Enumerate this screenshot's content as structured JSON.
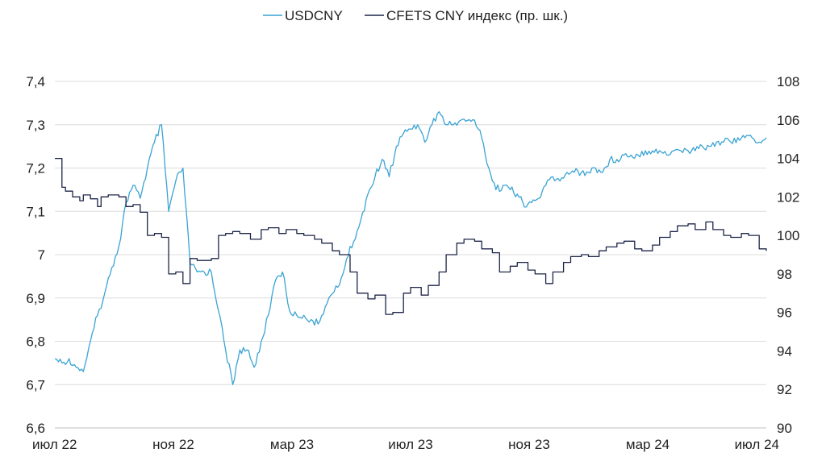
{
  "chart_data": {
    "type": "line",
    "title": "",
    "xlabel": "",
    "x_tick_labels": [
      "июл 22",
      "ноя 22",
      "мар 23",
      "июл 23",
      "ноя 23",
      "мар 24",
      "июл 24"
    ],
    "left_axis": {
      "ylim": [
        6.6,
        7.4
      ],
      "ticks": [
        "6,6",
        "6,7",
        "6,8",
        "6,9",
        "7",
        "7,1",
        "7,2",
        "7,3",
        "7,4"
      ]
    },
    "right_axis": {
      "ylim": [
        90,
        108
      ],
      "ticks": [
        "90",
        "92",
        "94",
        "96",
        "98",
        "100",
        "102",
        "104",
        "106",
        "108"
      ]
    },
    "grid": "horizontal",
    "legend_position": "top-center",
    "x_range": [
      2022.5,
      2024.5
    ],
    "series": [
      {
        "name": "USDCNY",
        "axis": "left",
        "color": "#3aa3d3",
        "x": [
          2022.5,
          2022.52,
          2022.54,
          2022.56,
          2022.58,
          2022.6,
          2022.62,
          2022.64,
          2022.66,
          2022.68,
          2022.7,
          2022.72,
          2022.74,
          2022.76,
          2022.78,
          2022.8,
          2022.82,
          2022.84,
          2022.86,
          2022.88,
          2022.9,
          2022.92,
          2022.94,
          2022.96,
          2022.98,
          2023.0,
          2023.02,
          2023.04,
          2023.06,
          2023.08,
          2023.1,
          2023.12,
          2023.14,
          2023.16,
          2023.18,
          2023.2,
          2023.22,
          2023.24,
          2023.26,
          2023.28,
          2023.3,
          2023.32,
          2023.34,
          2023.36,
          2023.38,
          2023.4,
          2023.42,
          2023.44,
          2023.46,
          2023.48,
          2023.5,
          2023.52,
          2023.54,
          2023.56,
          2023.58,
          2023.6,
          2023.62,
          2023.64,
          2023.66,
          2023.68,
          2023.7,
          2023.72,
          2023.74,
          2023.76,
          2023.78,
          2023.8,
          2023.82,
          2023.84,
          2023.86,
          2023.88,
          2023.9,
          2023.92,
          2023.94,
          2023.96,
          2023.98,
          2024.0,
          2024.02,
          2024.04,
          2024.06,
          2024.08,
          2024.1,
          2024.12,
          2024.14,
          2024.16,
          2024.18,
          2024.2,
          2024.22,
          2024.24,
          2024.26,
          2024.28,
          2024.3,
          2024.32,
          2024.34,
          2024.36,
          2024.38,
          2024.4,
          2024.42,
          2024.44,
          2024.46,
          2024.48,
          2024.5
        ],
        "values": [
          6.76,
          6.75,
          6.76,
          6.74,
          6.73,
          6.8,
          6.86,
          6.91,
          6.97,
          7.02,
          7.12,
          7.16,
          7.13,
          7.2,
          7.26,
          7.3,
          7.1,
          7.17,
          7.2,
          6.98,
          6.96,
          6.96,
          6.96,
          6.87,
          6.78,
          6.7,
          6.78,
          6.78,
          6.74,
          6.8,
          6.86,
          6.94,
          6.96,
          6.87,
          6.86,
          6.86,
          6.85,
          6.84,
          6.88,
          6.91,
          6.93,
          6.99,
          7.03,
          7.08,
          7.14,
          7.18,
          7.22,
          7.18,
          7.25,
          7.28,
          7.29,
          7.3,
          7.26,
          7.3,
          7.33,
          7.3,
          7.3,
          7.31,
          7.31,
          7.31,
          7.27,
          7.2,
          7.15,
          7.16,
          7.15,
          7.14,
          7.11,
          7.12,
          7.13,
          7.16,
          7.18,
          7.17,
          7.19,
          7.19,
          7.19,
          7.19,
          7.2,
          7.19,
          7.22,
          7.22,
          7.23,
          7.23,
          7.23,
          7.24,
          7.24,
          7.24,
          7.23,
          7.24,
          7.24,
          7.24,
          7.24,
          7.25,
          7.25,
          7.26,
          7.26,
          7.26,
          7.27,
          7.27,
          7.27,
          7.26,
          7.27
        ]
      },
      {
        "name": "CFETS CNY индекс (пр. шк.)",
        "axis": "right",
        "color": "#1c2547",
        "x": [
          2022.5,
          2022.51,
          2022.52,
          2022.53,
          2022.55,
          2022.57,
          2022.58,
          2022.6,
          2022.62,
          2022.63,
          2022.65,
          2022.68,
          2022.7,
          2022.72,
          2022.74,
          2022.76,
          2022.78,
          2022.8,
          2022.82,
          2022.84,
          2022.86,
          2022.88,
          2022.9,
          2022.92,
          2022.94,
          2022.96,
          2022.98,
          2023.0,
          2023.02,
          2023.05,
          2023.08,
          2023.1,
          2023.13,
          2023.15,
          2023.18,
          2023.2,
          2023.23,
          2023.25,
          2023.28,
          2023.3,
          2023.33,
          2023.35,
          2023.38,
          2023.4,
          2023.43,
          2023.45,
          2023.48,
          2023.5,
          2023.53,
          2023.55,
          2023.58,
          2023.6,
          2023.63,
          2023.65,
          2023.68,
          2023.7,
          2023.73,
          2023.75,
          2023.78,
          2023.8,
          2023.83,
          2023.85,
          2023.88,
          2023.9,
          2023.93,
          2023.95,
          2023.98,
          2024.0,
          2024.03,
          2024.05,
          2024.08,
          2024.1,
          2024.13,
          2024.15,
          2024.18,
          2024.2,
          2024.23,
          2024.25,
          2024.28,
          2024.3,
          2024.33,
          2024.35,
          2024.38,
          2024.4,
          2024.43,
          2024.45,
          2024.48,
          2024.5
        ],
        "values": [
          104.0,
          104.0,
          102.5,
          102.3,
          102.0,
          101.8,
          102.1,
          101.9,
          101.5,
          102.0,
          102.1,
          102.0,
          101.5,
          101.6,
          101.2,
          100.0,
          100.1,
          99.9,
          98.0,
          98.1,
          97.5,
          98.8,
          98.7,
          98.7,
          98.8,
          100.0,
          100.1,
          100.2,
          100.1,
          99.8,
          100.3,
          100.4,
          100.1,
          100.3,
          100.1,
          100.0,
          99.8,
          99.6,
          99.2,
          99.0,
          98.1,
          97.0,
          96.7,
          96.9,
          95.9,
          96.0,
          97.0,
          97.3,
          96.9,
          97.4,
          98.1,
          99.0,
          99.6,
          99.8,
          99.7,
          99.3,
          99.1,
          98.1,
          98.4,
          98.6,
          98.2,
          98.0,
          97.5,
          98.1,
          98.6,
          98.9,
          99.0,
          98.9,
          99.2,
          99.4,
          99.6,
          99.7,
          99.3,
          99.2,
          99.5,
          99.9,
          100.2,
          100.5,
          100.6,
          100.3,
          100.7,
          100.3,
          100.0,
          99.9,
          100.1,
          100.0,
          99.3,
          99.2
        ]
      }
    ]
  }
}
